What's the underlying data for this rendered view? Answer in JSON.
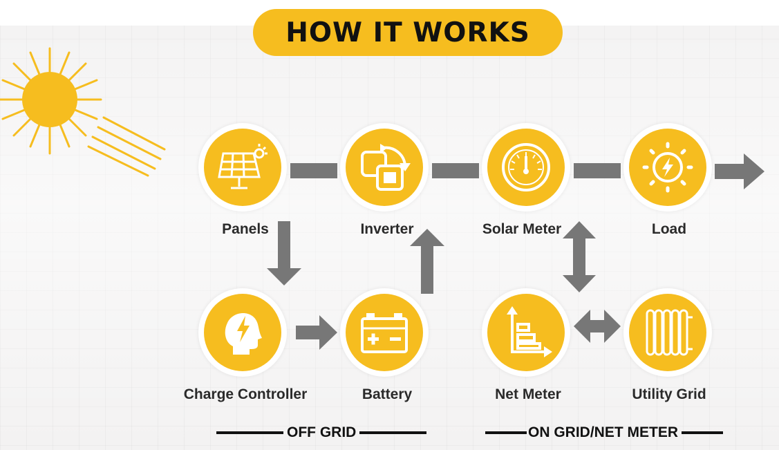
{
  "title": "HOW IT WORKS",
  "nodes": {
    "panels": "Panels",
    "inverter": "Inverter",
    "solar_meter": "Solar Meter",
    "load": "Load",
    "charge_controller": "Charge Controller",
    "battery": "Battery",
    "net_meter": "Net Meter",
    "utility_grid": "Utility Grid"
  },
  "legend": {
    "off_grid": "OFF GRID",
    "on_grid": "ON GRID/NET METER"
  },
  "colors": {
    "accent": "#f6bd1f",
    "connector": "#777777",
    "text": "#2a2a2a"
  },
  "icons": [
    "sun-icon",
    "solar-panel-icon",
    "inverter-icon",
    "gauge-icon",
    "power-bulb-icon",
    "head-bolt-icon",
    "battery-icon",
    "bar-chart-icon",
    "radiator-icon"
  ]
}
